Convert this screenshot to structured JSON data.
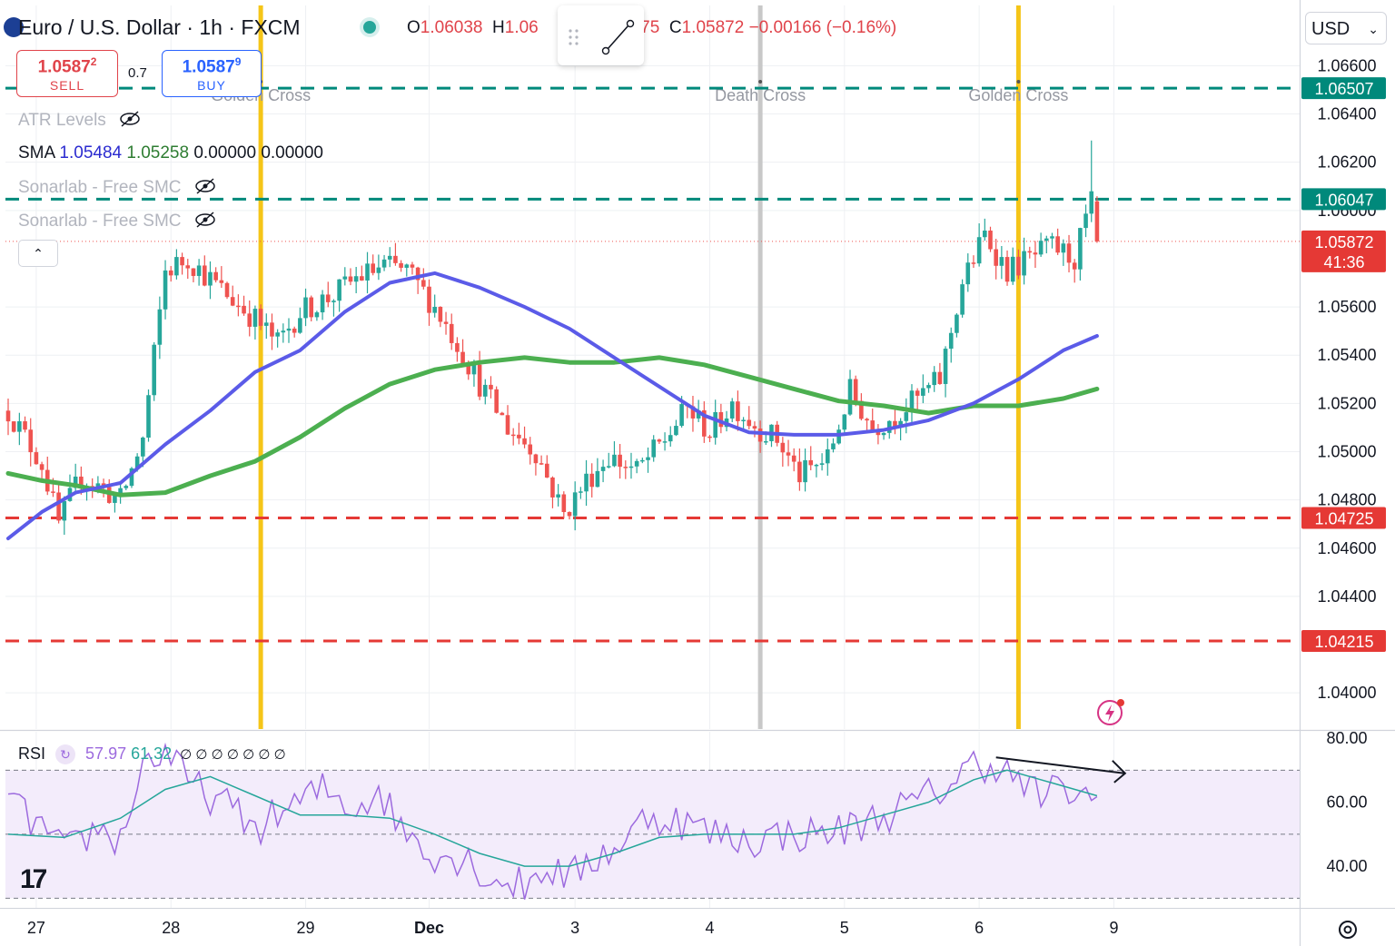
{
  "header": {
    "title": "Euro / U.S. Dollar · 1h · FXCM",
    "ohlc": {
      "o_label": "O",
      "o": "1.06038",
      "h_label": "H",
      "h": "1.06",
      "l_tail": "5675",
      "c_label": "C",
      "c": "1.05872",
      "change": "−0.00166 (−0.16%)"
    }
  },
  "trade": {
    "sell_price": "1.0587",
    "sell_sup": "2",
    "sell_label": "SELL",
    "spread": "0.7",
    "buy_price": "1.0587",
    "buy_sup": "9",
    "buy_label": "BUY"
  },
  "indicators": {
    "atr": "ATR Levels",
    "sma_label": "SMA",
    "sma_v1": "1.05484",
    "sma_v2": "1.05258",
    "sma_v3": "0.00000",
    "sma_v4": "0.00000",
    "smc1": "Sonarlab - Free SMC",
    "smc2": "Sonarlab - Free SMC"
  },
  "currency_select": "USD",
  "rsi": {
    "label": "RSI",
    "v1": "57.97",
    "v2": "61.32",
    "hidden_marks": "∅ ∅ ∅ ∅ ∅ ∅ ∅"
  },
  "colors": {
    "up": "#26a69a",
    "down": "#ef5350",
    "sma_fast": "#5b5be8",
    "sma_slow": "#4caf50",
    "cross": "#f5c518",
    "death": "#c8c8c8",
    "resistance": "#00897b",
    "support": "#e53935",
    "rsi": "#9c6ade",
    "rsi_ma": "#26a69a"
  },
  "chart_data": {
    "type": "candlestick",
    "symbol": "EUR/USD",
    "interval": "1h",
    "ylim": [
      1.0385,
      1.0685
    ],
    "y_ticks": [
      "1.06600",
      "1.06400",
      "1.06200",
      "1.06000",
      "1.05600",
      "1.05400",
      "1.05200",
      "1.05000",
      "1.04800",
      "1.04600",
      "1.04400",
      "1.04000"
    ],
    "x_ticks": [
      {
        "label": "27",
        "bar": 5
      },
      {
        "label": "28",
        "bar": 29
      },
      {
        "label": "29",
        "bar": 53
      },
      {
        "label": "Dec",
        "bar": 75
      },
      {
        "label": "3",
        "bar": 101
      },
      {
        "label": "4",
        "bar": 125
      },
      {
        "label": "5",
        "bar": 149
      },
      {
        "label": "6",
        "bar": 173
      },
      {
        "label": "9",
        "bar": 197
      }
    ],
    "price_labels": [
      {
        "value": "1.06507",
        "kind": "resistance"
      },
      {
        "value": "1.06047",
        "kind": "resistance"
      },
      {
        "value": "1.05872",
        "kind": "last",
        "countdown": "41:36"
      },
      {
        "value": "1.04725",
        "kind": "support"
      },
      {
        "value": "1.04215",
        "kind": "support"
      }
    ],
    "events": [
      {
        "label": "Golden Cross",
        "bar": 45,
        "kind": "golden"
      },
      {
        "label": "Death Cross",
        "bar": 134,
        "kind": "death"
      },
      {
        "label": "Golden Cross",
        "bar": 180,
        "kind": "golden"
      }
    ],
    "close_path": [
      [
        0,
        1.0517
      ],
      [
        6,
        1.0495
      ],
      [
        9,
        1.047
      ],
      [
        13,
        1.049
      ],
      [
        20,
        1.048
      ],
      [
        24,
        1.0505
      ],
      [
        28,
        1.0575
      ],
      [
        32,
        1.058
      ],
      [
        38,
        1.0567
      ],
      [
        44,
        1.0555
      ],
      [
        48,
        1.0545
      ],
      [
        52,
        1.0558
      ],
      [
        58,
        1.0565
      ],
      [
        62,
        1.0572
      ],
      [
        67,
        1.0577
      ],
      [
        71,
        1.0575
      ],
      [
        76,
        1.056
      ],
      [
        80,
        1.0545
      ],
      [
        84,
        1.0528
      ],
      [
        89,
        1.051
      ],
      [
        94,
        1.05
      ],
      [
        99,
        1.0474
      ],
      [
        103,
        1.0488
      ],
      [
        107,
        1.0498
      ],
      [
        112,
        1.0492
      ],
      [
        117,
        1.0505
      ],
      [
        121,
        1.0518
      ],
      [
        125,
        1.0508
      ],
      [
        129,
        1.052
      ],
      [
        133,
        1.0511
      ],
      [
        137,
        1.0505
      ],
      [
        141,
        1.049
      ],
      [
        146,
        1.0497
      ],
      [
        150,
        1.0525
      ],
      [
        154,
        1.051
      ],
      [
        158,
        1.0515
      ],
      [
        162,
        1.0522
      ],
      [
        166,
        1.053
      ],
      [
        170,
        1.057
      ],
      [
        174,
        1.059
      ],
      [
        178,
        1.0575
      ],
      [
        182,
        1.058
      ],
      [
        186,
        1.0585
      ],
      [
        190,
        1.058
      ],
      [
        193,
        1.0604
      ],
      [
        194,
        1.0587
      ]
    ],
    "sma_fast": [
      [
        0,
        1.0464
      ],
      [
        6,
        1.0475
      ],
      [
        12,
        1.0483
      ],
      [
        20,
        1.0487
      ],
      [
        28,
        1.0503
      ],
      [
        36,
        1.0517
      ],
      [
        44,
        1.0533
      ],
      [
        52,
        1.0542
      ],
      [
        60,
        1.0558
      ],
      [
        68,
        1.057
      ],
      [
        76,
        1.0574
      ],
      [
        84,
        1.0568
      ],
      [
        92,
        1.056
      ],
      [
        100,
        1.0551
      ],
      [
        108,
        1.0539
      ],
      [
        116,
        1.0527
      ],
      [
        124,
        1.0515
      ],
      [
        132,
        1.0508
      ],
      [
        140,
        1.0507
      ],
      [
        148,
        1.0507
      ],
      [
        156,
        1.0509
      ],
      [
        164,
        1.0513
      ],
      [
        172,
        1.052
      ],
      [
        180,
        1.053
      ],
      [
        188,
        1.0542
      ],
      [
        194,
        1.0548
      ]
    ],
    "sma_slow": [
      [
        0,
        1.0491
      ],
      [
        6,
        1.0488
      ],
      [
        12,
        1.0486
      ],
      [
        20,
        1.0482
      ],
      [
        28,
        1.0483
      ],
      [
        36,
        1.049
      ],
      [
        44,
        1.0496
      ],
      [
        52,
        1.0506
      ],
      [
        60,
        1.0518
      ],
      [
        68,
        1.0528
      ],
      [
        76,
        1.0534
      ],
      [
        84,
        1.0537
      ],
      [
        92,
        1.0539
      ],
      [
        100,
        1.0537
      ],
      [
        108,
        1.0537
      ],
      [
        116,
        1.0539
      ],
      [
        124,
        1.0536
      ],
      [
        132,
        1.0531
      ],
      [
        140,
        1.0526
      ],
      [
        148,
        1.0521
      ],
      [
        156,
        1.0519
      ],
      [
        164,
        1.0516
      ],
      [
        172,
        1.0519
      ],
      [
        180,
        1.0519
      ],
      [
        188,
        1.0522
      ],
      [
        194,
        1.0526
      ]
    ],
    "rsi": {
      "ylim": [
        27,
        82
      ],
      "levels": [
        70,
        50,
        30
      ],
      "y_ticks": [
        "80.00",
        "60.00",
        "40.00"
      ],
      "path": [
        [
          0,
          60
        ],
        [
          6,
          52
        ],
        [
          10,
          44
        ],
        [
          16,
          52
        ],
        [
          20,
          48
        ],
        [
          24,
          72
        ],
        [
          28,
          76
        ],
        [
          32,
          66
        ],
        [
          38,
          60
        ],
        [
          44,
          52
        ],
        [
          50,
          58
        ],
        [
          56,
          64
        ],
        [
          62,
          58
        ],
        [
          66,
          64
        ],
        [
          70,
          52
        ],
        [
          76,
          44
        ],
        [
          82,
          42
        ],
        [
          86,
          36
        ],
        [
          92,
          34
        ],
        [
          96,
          40
        ],
        [
          100,
          36
        ],
        [
          104,
          42
        ],
        [
          110,
          48
        ],
        [
          114,
          56
        ],
        [
          120,
          54
        ],
        [
          126,
          50
        ],
        [
          132,
          48
        ],
        [
          138,
          50
        ],
        [
          144,
          50
        ],
        [
          150,
          52
        ],
        [
          156,
          56
        ],
        [
          162,
          60
        ],
        [
          168,
          66
        ],
        [
          172,
          72
        ],
        [
          176,
          72
        ],
        [
          180,
          66
        ],
        [
          184,
          62
        ],
        [
          188,
          64
        ],
        [
          194,
          60
        ]
      ],
      "ma": [
        [
          0,
          50
        ],
        [
          10,
          49
        ],
        [
          20,
          55
        ],
        [
          28,
          64
        ],
        [
          36,
          68
        ],
        [
          44,
          62
        ],
        [
          52,
          56
        ],
        [
          60,
          56
        ],
        [
          68,
          55
        ],
        [
          76,
          50
        ],
        [
          84,
          44
        ],
        [
          92,
          40
        ],
        [
          100,
          40
        ],
        [
          108,
          44
        ],
        [
          116,
          49
        ],
        [
          124,
          50
        ],
        [
          132,
          50
        ],
        [
          140,
          50
        ],
        [
          148,
          52
        ],
        [
          156,
          56
        ],
        [
          164,
          60
        ],
        [
          172,
          67
        ],
        [
          178,
          70
        ],
        [
          186,
          66
        ],
        [
          194,
          62
        ]
      ],
      "divergence_arrow": [
        [
          176,
          74
        ],
        [
          199,
          69
        ]
      ]
    }
  }
}
